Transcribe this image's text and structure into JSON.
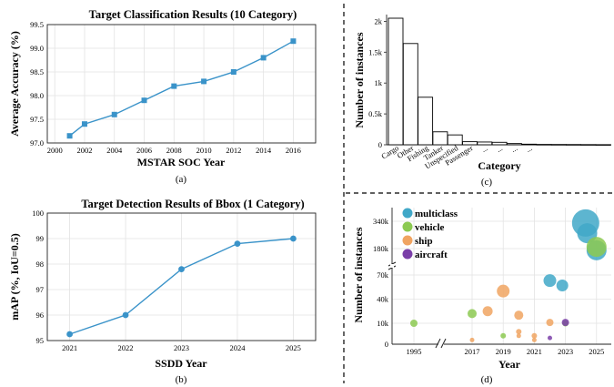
{
  "chart_data": [
    {
      "id": "a",
      "type": "line",
      "title": "Target Classification Results (10 Category)",
      "xlabel": "MSTAR SOC Year",
      "ylabel": "Average Accuracy (%)",
      "panel_label": "(a)",
      "x": [
        2001,
        2002,
        2004,
        2006,
        2008,
        2010,
        2012,
        2014,
        2016
      ],
      "y": [
        97.15,
        97.4,
        97.6,
        97.9,
        98.2,
        98.3,
        98.5,
        98.8,
        99.15
      ],
      "xlim": [
        1999.5,
        2017.5
      ],
      "ylim": [
        97.0,
        99.5
      ],
      "xticks": [
        2000,
        2002,
        2004,
        2006,
        2008,
        2010,
        2012,
        2014,
        2016
      ],
      "yticks": [
        97.0,
        97.5,
        98.0,
        98.5,
        99.0,
        99.5
      ],
      "ytick_labels": [
        "97.0",
        "97.5",
        "98.0",
        "98.5",
        "99.0",
        "99.5"
      ],
      "marker": "square",
      "color": "#3a93c9",
      "grid": true
    },
    {
      "id": "b",
      "type": "line",
      "title": "Target Detection Results of Bbox (1 Category)",
      "xlabel": "SSDD Year",
      "ylabel": "mAP (%, IoU=0.5)",
      "panel_label": "(b)",
      "x": [
        2021,
        2022,
        2023,
        2024,
        2025
      ],
      "y": [
        95.25,
        96.0,
        97.8,
        98.8,
        99.0
      ],
      "xlim": [
        2020.6,
        2025.4
      ],
      "ylim": [
        95,
        100
      ],
      "xticks": [
        2021,
        2022,
        2023,
        2024,
        2025
      ],
      "yticks": [
        95,
        96,
        97,
        98,
        99,
        100
      ],
      "marker": "circle",
      "color": "#3a93c9",
      "grid": true
    },
    {
      "id": "c",
      "type": "bar",
      "xlabel": "Category",
      "ylabel": "Number of instances",
      "panel_label": "(c)",
      "categories": [
        "Cargo",
        "Other",
        "Fishing",
        "Tanker",
        "Unspecified",
        "Passenger",
        "...",
        "...",
        "...",
        "...",
        "",
        "",
        "",
        "",
        ""
      ],
      "values": [
        2050,
        1640,
        770,
        210,
        160,
        50,
        45,
        40,
        20,
        10,
        6,
        5,
        4,
        3,
        2
      ],
      "ylim": [
        0,
        2050
      ],
      "yticks": [
        0,
        500,
        1000,
        1500,
        2000
      ],
      "ytick_labels": [
        "0",
        "0.5k",
        "1k",
        "1.5k",
        "2k"
      ],
      "bar_fill": "#ffffff",
      "bar_edge": "#000000"
    },
    {
      "id": "d",
      "type": "scatter",
      "xlabel": "Year",
      "ylabel": "Number of instances",
      "panel_label": "(d)",
      "xticks": [
        1995,
        2017,
        2019,
        2021,
        2023,
        2025
      ],
      "yticks": [
        0,
        10000,
        40000,
        70000,
        180000,
        340000
      ],
      "ytick_labels": [
        "0",
        "10k",
        "40k",
        "70k",
        "180k",
        "340k"
      ],
      "series": [
        {
          "name": "multiclass",
          "color": "#41a8c8",
          "points": [
            {
              "x": 2022.0,
              "y": 63000,
              "size": 14
            },
            {
              "x": 2022.8,
              "y": 57000,
              "size": 13
            },
            {
              "x": 2024.3,
              "y": 330000,
              "size": 30
            },
            {
              "x": 2024.4,
              "y": 270000,
              "size": 22
            },
            {
              "x": 2025.0,
              "y": 170000,
              "size": 22
            }
          ]
        },
        {
          "name": "vehicle",
          "color": "#8cc951",
          "points": [
            {
              "x": 1995.0,
              "y": 10000,
              "size": 8
            },
            {
              "x": 2017.0,
              "y": 22000,
              "size": 10
            },
            {
              "x": 2019.0,
              "y": 4000,
              "size": 6
            },
            {
              "x": 2023.0,
              "y": 10000,
              "size": 7
            },
            {
              "x": 2025.0,
              "y": 190000,
              "size": 22
            }
          ]
        },
        {
          "name": "ship",
          "color": "#f0a461",
          "points": [
            {
              "x": 2017.0,
              "y": 2000,
              "size": 5
            },
            {
              "x": 2018.0,
              "y": 25000,
              "size": 11
            },
            {
              "x": 2019.0,
              "y": 50000,
              "size": 14
            },
            {
              "x": 2020.0,
              "y": 20000,
              "size": 10
            },
            {
              "x": 2020.0,
              "y": 6000,
              "size": 6
            },
            {
              "x": 2020.0,
              "y": 4000,
              "size": 5
            },
            {
              "x": 2021.0,
              "y": 4000,
              "size": 6
            },
            {
              "x": 2021.0,
              "y": 2000,
              "size": 5
            },
            {
              "x": 2022.0,
              "y": 11000,
              "size": 8
            }
          ]
        },
        {
          "name": "aircraft",
          "color": "#7a3ea8",
          "points": [
            {
              "x": 2023.0,
              "y": 11000,
              "size": 8
            },
            {
              "x": 2022.0,
              "y": 3000,
              "size": 5
            }
          ]
        }
      ]
    }
  ]
}
